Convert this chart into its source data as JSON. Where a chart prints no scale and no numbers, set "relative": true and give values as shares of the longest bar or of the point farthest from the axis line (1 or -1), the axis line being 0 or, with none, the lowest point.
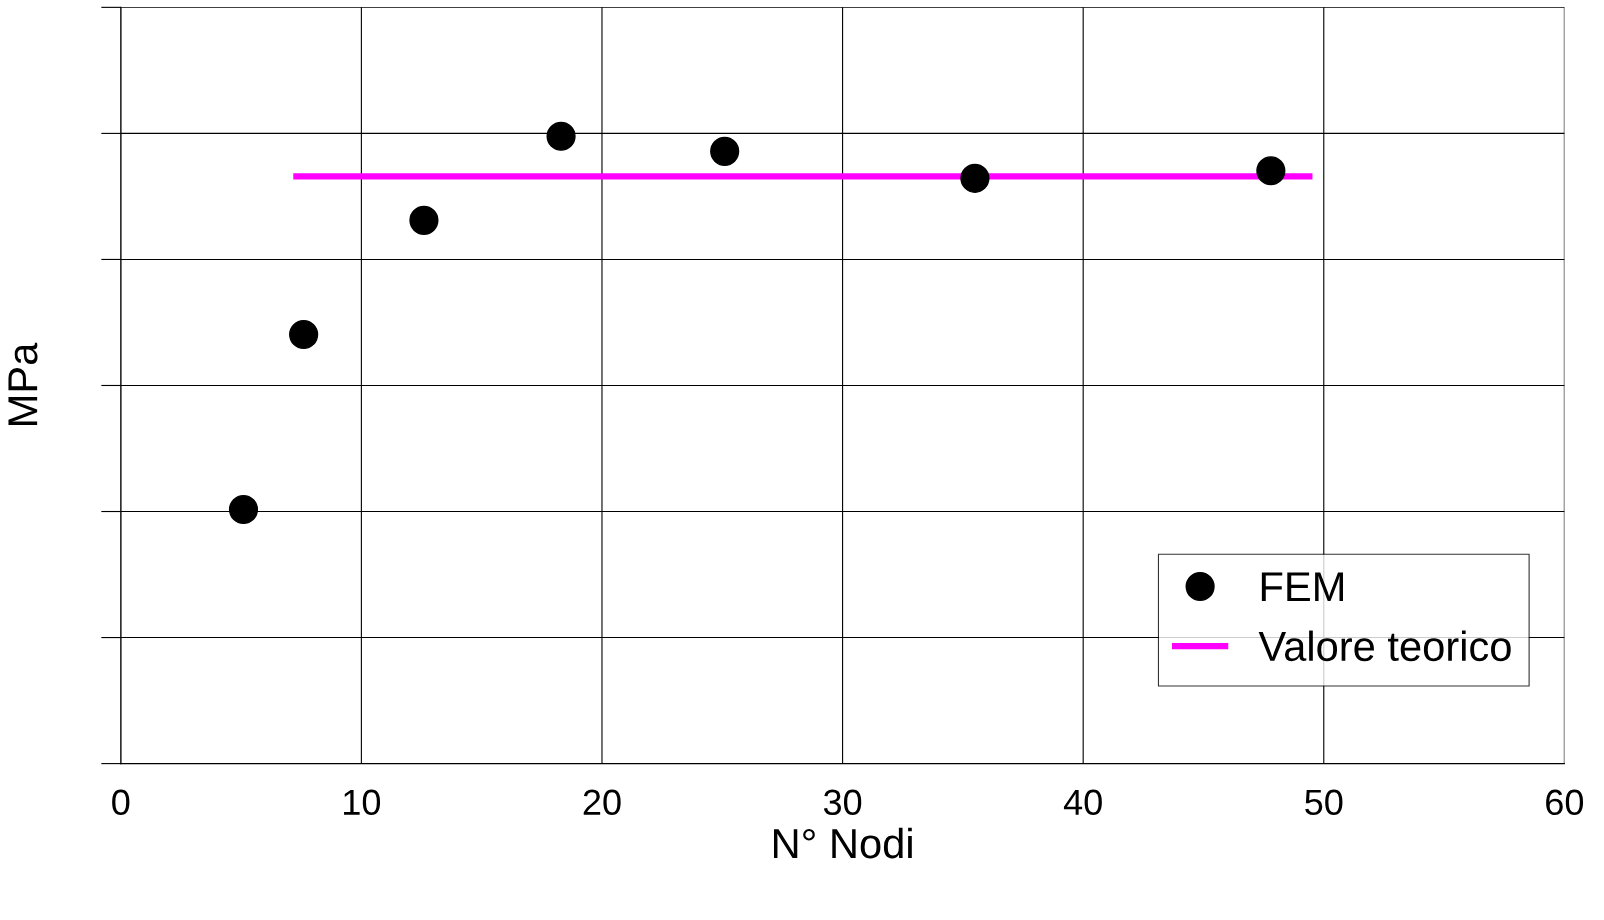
{
  "chart_data": {
    "type": "scatter",
    "xlabel": "N° Nodi",
    "ylabel": "MPa",
    "relative": true,
    "xlim": [
      0,
      60
    ],
    "xticks": [
      0,
      10,
      20,
      30,
      40,
      50,
      60
    ],
    "grid": true,
    "legend": "bottom right",
    "tick_labels": "x",
    "series": [
      {
        "name": "FEM",
        "type": "scatter",
        "color": "#000000",
        "marker": "circle",
        "x": [
          5.1,
          7.6,
          12.6,
          18.3,
          25.1,
          35.5,
          47.8
        ],
        "values": [
          0.405,
          0.684,
          0.866,
          1,
          0.976,
          0.933,
          0.945
        ]
      },
      {
        "name": "Valore teorico",
        "type": "line",
        "color": "#ff00ff",
        "x": [
          7.3,
          49.4
        ],
        "values": [
          0.936,
          0.936
        ]
      }
    ]
  }
}
